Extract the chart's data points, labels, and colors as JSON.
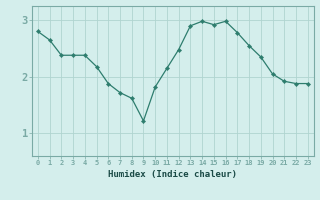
{
  "title": "",
  "xlabel": "Humidex (Indice chaleur)",
  "x": [
    0,
    1,
    2,
    3,
    4,
    5,
    6,
    7,
    8,
    9,
    10,
    11,
    12,
    13,
    14,
    15,
    16,
    17,
    18,
    19,
    20,
    21,
    22,
    23
  ],
  "y": [
    2.8,
    2.65,
    2.38,
    2.38,
    2.38,
    2.18,
    1.88,
    1.72,
    1.62,
    1.22,
    1.82,
    2.15,
    2.48,
    2.9,
    2.98,
    2.92,
    2.98,
    2.78,
    2.55,
    2.35,
    2.05,
    1.92,
    1.88,
    1.88
  ],
  "line_color": "#2e7d6e",
  "marker_color": "#2e7d6e",
  "bg_color": "#d4eeec",
  "grid_color": "#b0d4d0",
  "axis_color": "#7aaaa5",
  "yticks": [
    1,
    2,
    3
  ],
  "ylim": [
    0.6,
    3.25
  ],
  "xlim": [
    -0.5,
    23.5
  ]
}
